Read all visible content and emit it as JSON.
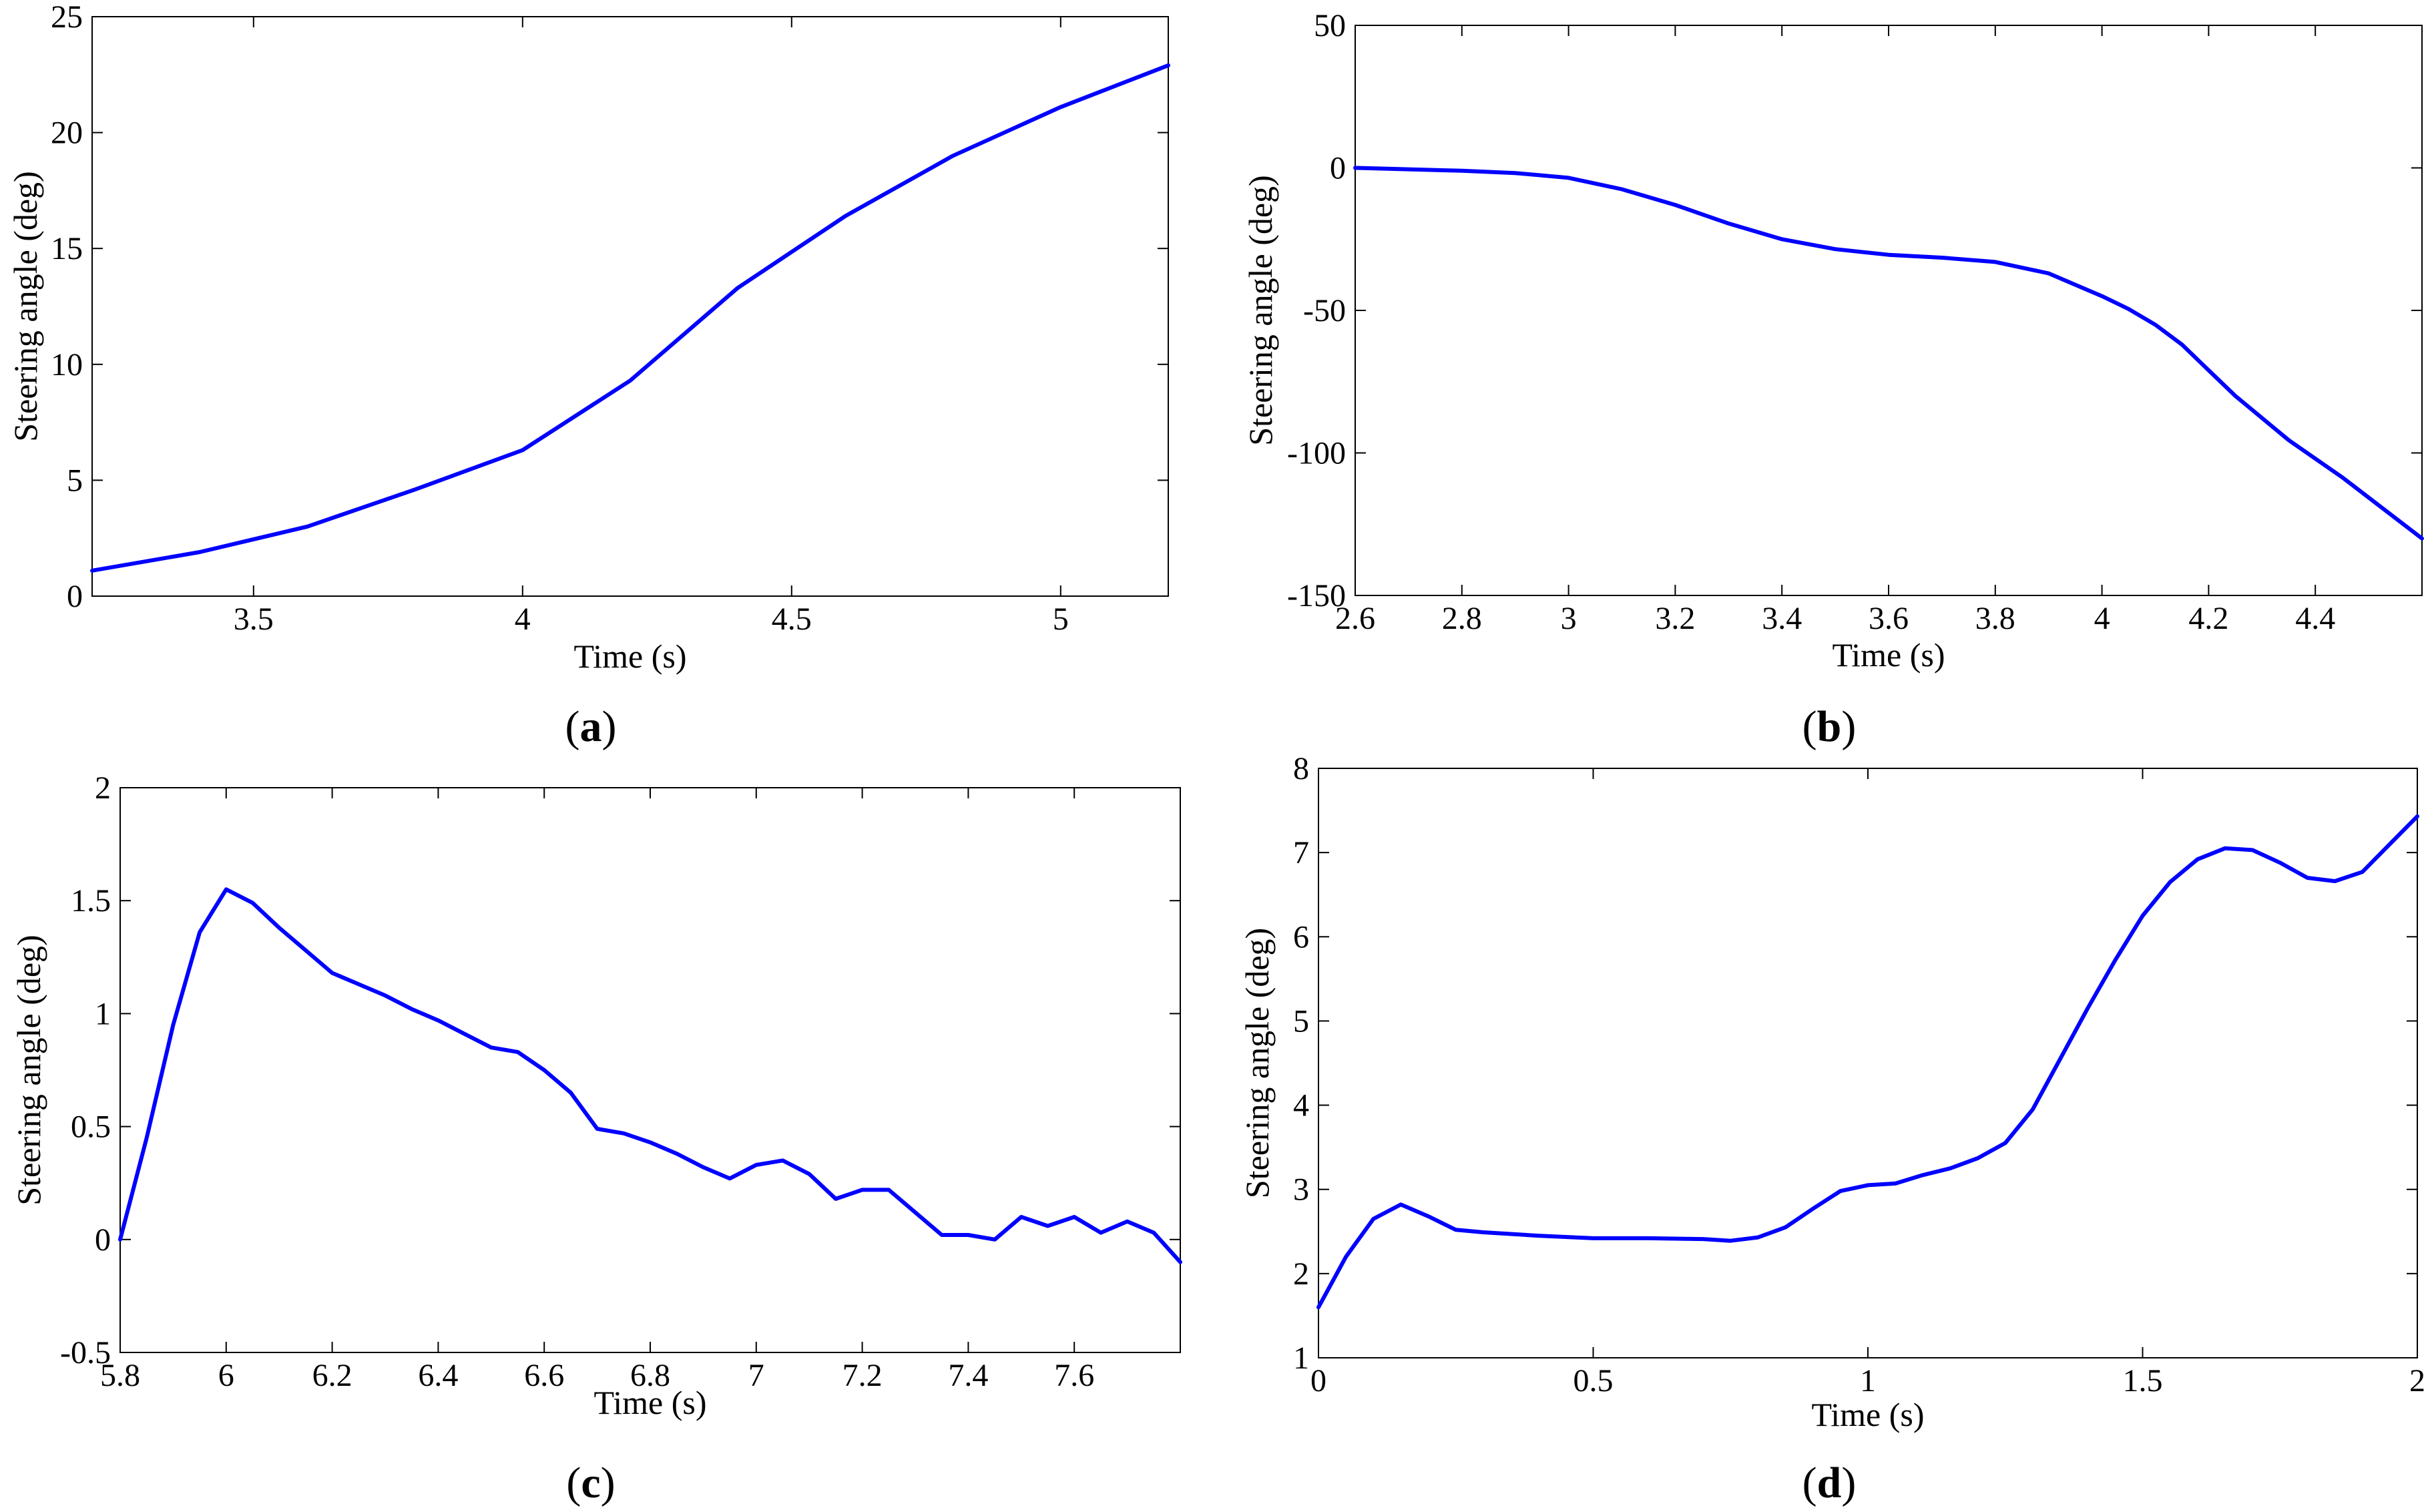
{
  "figure": {
    "line_color": "#0000ff",
    "axis_color": "#000000"
  },
  "chart_data": [
    {
      "type": "line",
      "panel_label": "a",
      "title": "",
      "xlabel": "Time (s)",
      "ylabel": "Steering angle (deg)",
      "xlim": [
        3.2,
        5.2
      ],
      "ylim": [
        0,
        25
      ],
      "xticks": [
        3.5,
        4,
        4.5,
        5
      ],
      "xtick_labels": [
        "3.5",
        "4",
        "4.5",
        "5"
      ],
      "yticks": [
        0,
        5,
        10,
        15,
        20,
        25
      ],
      "ytick_labels": [
        "0",
        "5",
        "10",
        "15",
        "20",
        "25"
      ],
      "grid": false,
      "series": [
        {
          "name": "steering angle",
          "x": [
            3.2,
            3.4,
            3.6,
            3.8,
            4.0,
            4.2,
            4.4,
            4.6,
            4.8,
            5.0,
            5.2
          ],
          "y": [
            1.1,
            1.9,
            3.0,
            4.6,
            6.3,
            9.3,
            13.3,
            16.4,
            19.0,
            21.1,
            22.9
          ]
        }
      ]
    },
    {
      "type": "line",
      "panel_label": "b",
      "title": "",
      "xlabel": "Time (s)",
      "ylabel": "Steering angle (deg)",
      "xlim": [
        2.6,
        4.6
      ],
      "ylim": [
        -150,
        50
      ],
      "xticks": [
        2.6,
        2.8,
        3.0,
        3.2,
        3.4,
        3.6,
        3.8,
        4.0,
        4.2,
        4.4
      ],
      "xtick_labels": [
        "2.6",
        "2.8",
        "3",
        "3.2",
        "3.4",
        "3.6",
        "3.8",
        "4",
        "4.2",
        "4.4"
      ],
      "yticks": [
        -150,
        -100,
        -50,
        0,
        50
      ],
      "ytick_labels": [
        "-150",
        "-100",
        "-50",
        "0",
        "50"
      ],
      "grid": false,
      "series": [
        {
          "name": "steering angle",
          "x": [
            2.6,
            2.7,
            2.8,
            2.9,
            3.0,
            3.1,
            3.2,
            3.3,
            3.4,
            3.5,
            3.6,
            3.7,
            3.8,
            3.9,
            4.0,
            4.05,
            4.1,
            4.15,
            4.2,
            4.25,
            4.35,
            4.45,
            4.6
          ],
          "y": [
            0,
            -0.5,
            -1,
            -1.8,
            -3.5,
            -7.5,
            -13,
            -19.5,
            -25,
            -28.5,
            -30.5,
            -31.5,
            -33,
            -37,
            -45,
            -49.5,
            -55,
            -62,
            -71,
            -80,
            -95.5,
            -108.5,
            -130
          ]
        }
      ]
    },
    {
      "type": "line",
      "panel_label": "c",
      "title": "",
      "xlabel": "Time (s)",
      "ylabel": "Steering angle (deg)",
      "xlim": [
        5.8,
        7.8
      ],
      "ylim": [
        -0.5,
        2
      ],
      "xticks": [
        5.8,
        6.0,
        6.2,
        6.4,
        6.6,
        6.8,
        7.0,
        7.2,
        7.4,
        7.6
      ],
      "xtick_labels": [
        "5.8",
        "6",
        "6.2",
        "6.4",
        "6.6",
        "6.8",
        "7",
        "7.2",
        "7.4",
        "7.6"
      ],
      "yticks": [
        -0.5,
        0,
        0.5,
        1,
        1.5,
        2
      ],
      "ytick_labels": [
        "-0.5",
        "0",
        "0.5",
        "1",
        "1.5",
        "2"
      ],
      "grid": false,
      "series": [
        {
          "name": "steering angle",
          "x": [
            5.8,
            5.85,
            5.9,
            5.95,
            6.0,
            6.05,
            6.1,
            6.15,
            6.2,
            6.25,
            6.3,
            6.35,
            6.4,
            6.45,
            6.5,
            6.55,
            6.6,
            6.65,
            6.7,
            6.75,
            6.8,
            6.85,
            6.9,
            6.95,
            7.0,
            7.05,
            7.1,
            7.15,
            7.2,
            7.25,
            7.3,
            7.35,
            7.4,
            7.45,
            7.5,
            7.55,
            7.6,
            7.65,
            7.7,
            7.75,
            7.8
          ],
          "y": [
            0,
            0.45,
            0.95,
            1.36,
            1.55,
            1.49,
            1.38,
            1.28,
            1.18,
            1.13,
            1.08,
            1.02,
            0.97,
            0.91,
            0.85,
            0.83,
            0.75,
            0.65,
            0.49,
            0.47,
            0.43,
            0.38,
            0.32,
            0.27,
            0.33,
            0.35,
            0.29,
            0.18,
            0.22,
            0.22,
            0.12,
            0.02,
            0.02,
            0.0,
            0.1,
            0.06,
            0.1,
            0.03,
            0.08,
            0.03,
            -0.1
          ]
        }
      ]
    },
    {
      "type": "line",
      "panel_label": "d",
      "title": "",
      "xlabel": "Time (s)",
      "ylabel": "Steering angle (deg)",
      "xlim": [
        0,
        2
      ],
      "ylim": [
        1,
        8
      ],
      "xticks": [
        0,
        0.5,
        1,
        1.5,
        2
      ],
      "xtick_labels": [
        "0",
        "0.5",
        "1",
        "1.5",
        "2"
      ],
      "yticks": [
        1,
        2,
        3,
        4,
        5,
        6,
        7,
        8
      ],
      "ytick_labels": [
        "1",
        "2",
        "3",
        "4",
        "5",
        "6",
        "7",
        "8"
      ],
      "grid": false,
      "series": [
        {
          "name": "steering angle",
          "x": [
            0,
            0.05,
            0.1,
            0.15,
            0.2,
            0.25,
            0.3,
            0.4,
            0.5,
            0.6,
            0.7,
            0.75,
            0.8,
            0.85,
            0.9,
            0.95,
            1.0,
            1.05,
            1.1,
            1.15,
            1.2,
            1.25,
            1.3,
            1.35,
            1.4,
            1.45,
            1.5,
            1.55,
            1.6,
            1.65,
            1.7,
            1.75,
            1.8,
            1.85,
            1.9,
            1.95,
            2.0
          ],
          "y": [
            1.6,
            2.2,
            2.65,
            2.82,
            2.68,
            2.52,
            2.49,
            2.45,
            2.42,
            2.42,
            2.41,
            2.39,
            2.43,
            2.55,
            2.77,
            2.98,
            3.05,
            3.07,
            3.17,
            3.25,
            3.37,
            3.55,
            3.95,
            4.55,
            5.15,
            5.72,
            6.25,
            6.65,
            6.92,
            7.05,
            7.03,
            6.88,
            6.7,
            6.66,
            6.77,
            7.1,
            7.43
          ]
        }
      ]
    }
  ]
}
